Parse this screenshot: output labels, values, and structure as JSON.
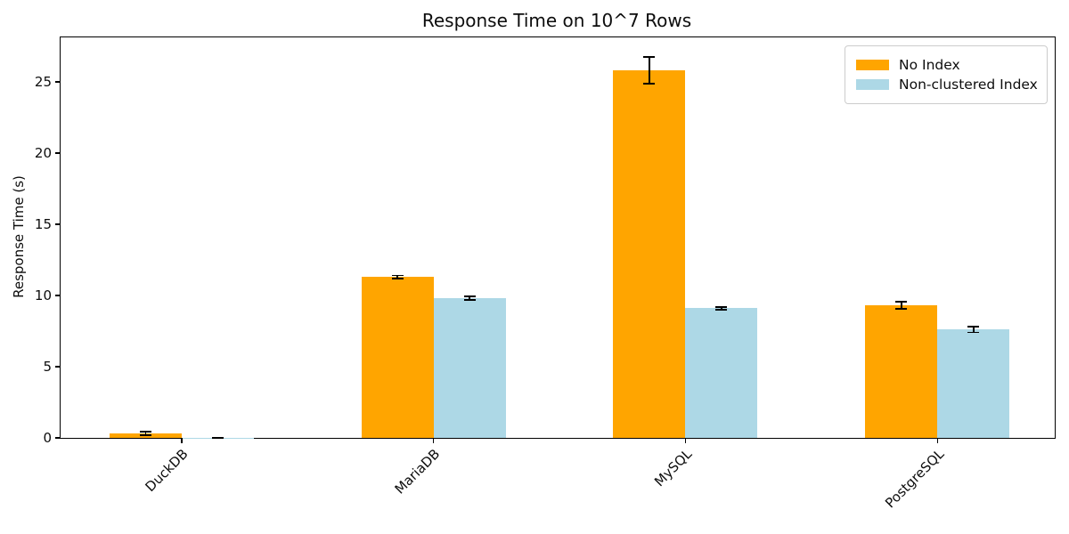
{
  "chart_data": {
    "type": "bar",
    "title": "Response Time on 10^7 Rows",
    "xlabel": "",
    "ylabel": "Response Time (s)",
    "categories": [
      "DuckDB",
      "MariaDB",
      "MySQL",
      "PostgreSQL"
    ],
    "series": [
      {
        "name": "No Index",
        "color": "#FFA500",
        "values": [
          0.3,
          11.3,
          25.8,
          9.3
        ],
        "errors": [
          0.13,
          0.1,
          0.95,
          0.25
        ]
      },
      {
        "name": "Non-clustered Index",
        "color": "#ADD8E6",
        "values": [
          0.02,
          9.8,
          9.1,
          7.6
        ],
        "errors": [
          0.015,
          0.12,
          0.1,
          0.2
        ]
      }
    ],
    "yticks": [
      0,
      5,
      10,
      15,
      20,
      25
    ],
    "ylim": [
      0,
      28.12
    ],
    "grid": false,
    "legend_position": "upper right",
    "error_bar_color": "#000000",
    "tick_label_rotation_deg": 45
  }
}
